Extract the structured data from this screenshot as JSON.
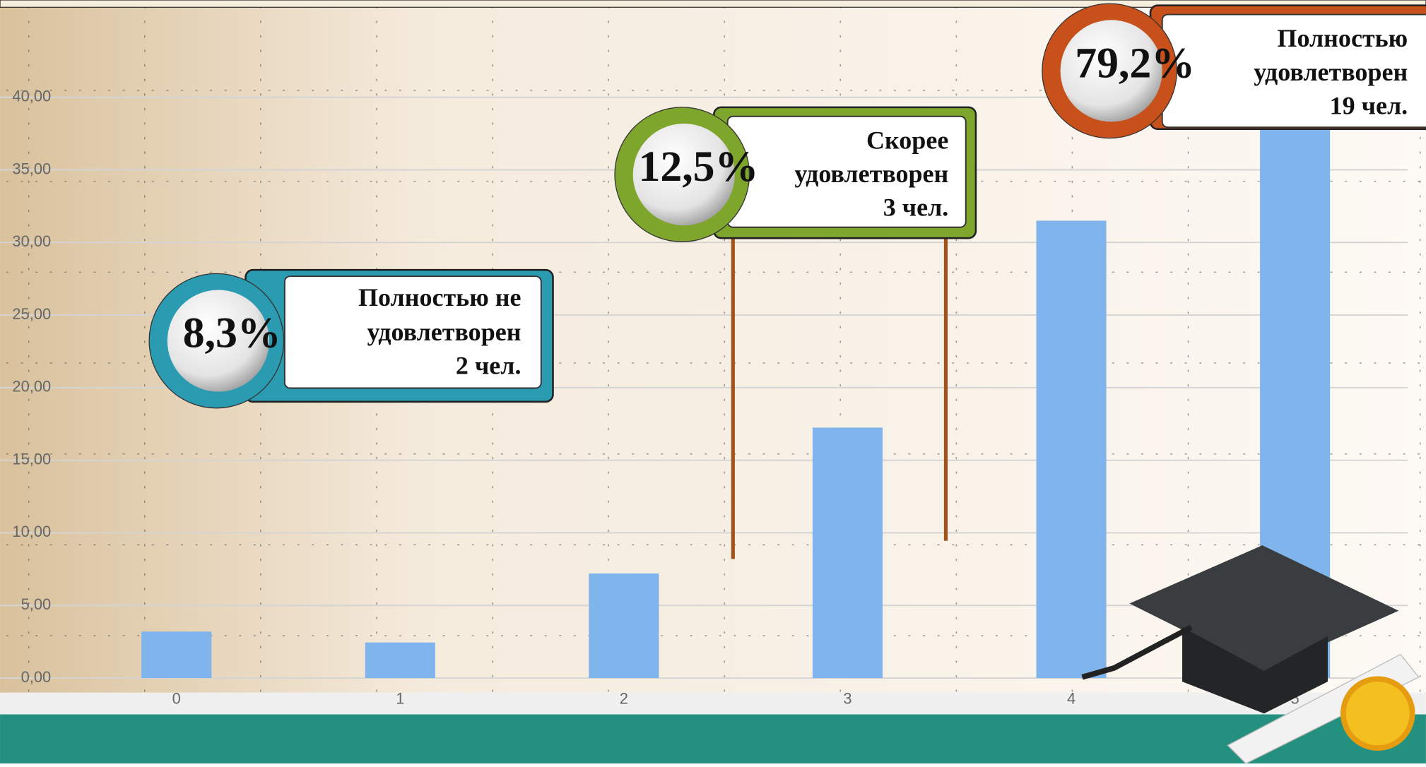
{
  "chart_data": {
    "type": "bar",
    "categories": [
      "0",
      "1",
      "2",
      "3",
      "4",
      "5"
    ],
    "values": [
      3.2,
      2.45,
      7.2,
      17.25,
      31.5,
      38.0
    ],
    "color": "#7fb4ec",
    "ylim": [
      0,
      46.7
    ],
    "yticks": [
      {
        "value": 0,
        "label": "0,00"
      },
      {
        "value": 5,
        "label": "5,00"
      },
      {
        "value": 10,
        "label": "10,00"
      },
      {
        "value": 15,
        "label": "15,00"
      },
      {
        "value": 20,
        "label": "20,00"
      },
      {
        "value": 25,
        "label": "25,00"
      },
      {
        "value": 30,
        "label": "30,00"
      },
      {
        "value": 35,
        "label": "35,00"
      },
      {
        "value": 40,
        "label": "40,00"
      }
    ],
    "grid": true
  },
  "callouts": [
    {
      "percent": "8,3%",
      "lines": [
        "Полностью не",
        "удовлетворен",
        "2 чел."
      ],
      "color": "#2a9bb0"
    },
    {
      "percent": "12,5%",
      "lines": [
        "Скорее",
        "удовлетворен",
        "3 чел."
      ],
      "color": "#7fa62c"
    },
    {
      "percent": "79,2%",
      "lines": [
        "Полностью",
        "удовлетворен",
        "19 чел."
      ],
      "color": "#c8501a"
    }
  ]
}
